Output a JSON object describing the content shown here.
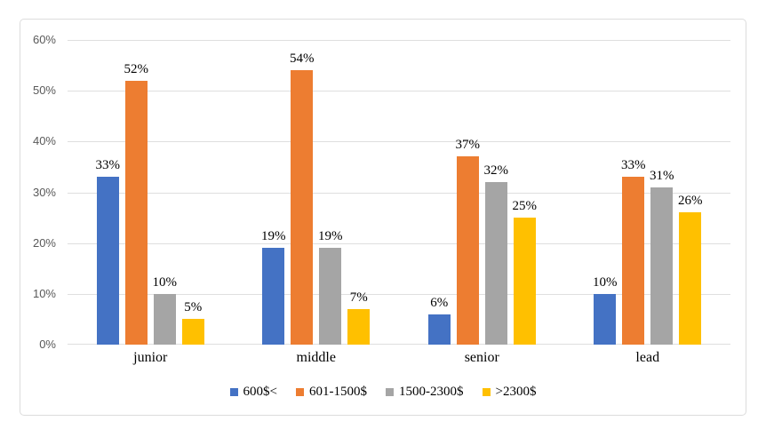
{
  "chart_data": {
    "type": "bar",
    "title": "",
    "xlabel": "",
    "ylabel": "",
    "categories": [
      "junior",
      "middle",
      "senior",
      "lead"
    ],
    "series": [
      {
        "name": "600$<",
        "color": "#4472C4",
        "values": [
          33,
          19,
          6,
          10
        ],
        "labels": [
          "33%",
          "19%",
          "6%",
          "10%"
        ]
      },
      {
        "name": "601-1500$",
        "color": "#ED7D31",
        "values": [
          52,
          54,
          37,
          33
        ],
        "labels": [
          "52%",
          "54%",
          "37%",
          "33%"
        ]
      },
      {
        "name": "1500-2300$",
        "color": "#A5A5A5",
        "values": [
          10,
          19,
          32,
          31
        ],
        "labels": [
          "10%",
          "19%",
          "32%",
          "31%"
        ]
      },
      {
        "name": ">2300$",
        "color": "#FFC000",
        "values": [
          5,
          7,
          25,
          26
        ],
        "labels": [
          "5%",
          "7%",
          "25%",
          "26%"
        ]
      }
    ],
    "ylim": [
      0,
      60
    ],
    "y_ticks": [
      "0%",
      "10%",
      "20%",
      "30%",
      "40%",
      "50%",
      "60%"
    ],
    "grid": "horizontal",
    "gridline_color": "#dfdfdf",
    "axis_label_color": "#595959",
    "legend_position": "bottom"
  }
}
